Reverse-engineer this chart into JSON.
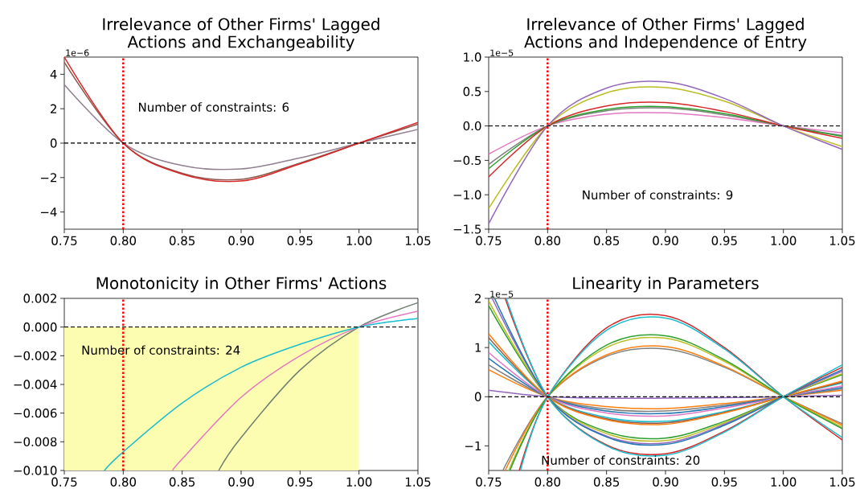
{
  "chart_data": [
    {
      "type": "line",
      "title": "Irrelevance of Other Firms' Lagged Actions and Exchangeability",
      "annotations": [
        "1e−6",
        "Number of constraints: 6"
      ],
      "x": [
        0.75,
        0.8,
        0.85,
        0.9,
        0.95,
        1.0,
        1.05
      ],
      "xlim": [
        0.75,
        1.05
      ],
      "ylim": [
        -5,
        5
      ],
      "xticks": [
        0.75,
        {
          "value": 0.8,
          "label": "0.80"
        },
        0.85,
        {
          "value": 0.9,
          "label": "0.90"
        },
        0.95,
        {
          "value": 1.0,
          "label": "1.00"
        },
        1.05
      ],
      "yticks": [
        {
          "value": -4,
          "label": "−4"
        },
        {
          "value": -2,
          "label": "−2"
        },
        0,
        2,
        4
      ],
      "ref_lines": [
        {
          "axis": "x",
          "value": 0.8,
          "color": "#ff0000",
          "line_style": "dotted"
        },
        {
          "axis": "y",
          "value": 0,
          "color": "#000000",
          "line_style": "dashed"
        }
      ],
      "series": [
        {
          "color": "#8f7f8f",
          "values": [
            3.4,
            0,
            -1.3,
            -1.5,
            -0.85,
            0,
            0.8
          ]
        },
        {
          "color": "#8c564b",
          "values": [
            4.7,
            0,
            -1.75,
            -2.1,
            -1.15,
            0,
            1.1
          ]
        },
        {
          "color": "#d62728",
          "values": [
            5.0,
            0,
            -1.8,
            -2.2,
            -1.2,
            0,
            1.2
          ]
        }
      ]
    },
    {
      "type": "line",
      "title": "Irrelevance of Other Firms' Lagged Actions and Independence of Entry",
      "annotations": [
        "1e−5",
        "Number of constraints: 9"
      ],
      "x": [
        0.75,
        0.8,
        0.85,
        0.9,
        0.95,
        1.0,
        1.05
      ],
      "xlim": [
        0.75,
        1.05
      ],
      "ylim": [
        -1.5,
        1.0
      ],
      "xticks": [
        0.75,
        {
          "value": 0.8,
          "label": "0.80"
        },
        0.85,
        {
          "value": 0.9,
          "label": "0.90"
        },
        0.95,
        {
          "value": 1.0,
          "label": "1.00"
        },
        1.05
      ],
      "yticks": [
        {
          "value": -1.5,
          "label": "−1.5"
        },
        {
          "value": -1.0,
          "label": "−1.0"
        },
        {
          "value": -0.5,
          "label": "−0.5"
        },
        {
          "value": 0,
          "label": "0.0"
        },
        0.5,
        {
          "value": 1.0,
          "label": "1.0"
        }
      ],
      "ref_lines": [
        {
          "axis": "x",
          "value": 0.8,
          "color": "#ff0000",
          "line_style": "dotted"
        },
        {
          "axis": "y",
          "value": 0,
          "color": "#000000",
          "line_style": "dashed"
        }
      ],
      "series": [
        {
          "color": "#e377c2",
          "values": [
            -0.41,
            0,
            0.17,
            0.19,
            0.12,
            0,
            -0.1
          ]
        },
        {
          "color": "#7f7f7f",
          "values": [
            -0.56,
            0,
            0.22,
            0.26,
            0.16,
            0,
            -0.14
          ]
        },
        {
          "color": "#2ca02c",
          "values": [
            -0.62,
            0,
            0.24,
            0.28,
            0.18,
            0,
            -0.15
          ]
        },
        {
          "color": "#d62728",
          "values": [
            -0.74,
            0,
            0.29,
            0.34,
            0.21,
            0,
            -0.18
          ]
        },
        {
          "color": "#bcbd22",
          "values": [
            -1.2,
            0,
            0.48,
            0.56,
            0.36,
            0,
            -0.3
          ]
        },
        {
          "color": "#9467bd",
          "values": [
            -1.42,
            0,
            0.55,
            0.64,
            0.4,
            0,
            -0.34
          ]
        }
      ]
    },
    {
      "type": "line",
      "title": "Monotonicity in Other Firms' Actions",
      "annotations": [
        "Number of constraints: 24"
      ],
      "xlim": [
        0.75,
        1.05
      ],
      "ylim": [
        -0.01,
        0.002
      ],
      "xticks": [
        0.75,
        {
          "value": 0.8,
          "label": "0.80"
        },
        0.85,
        {
          "value": 0.9,
          "label": "0.90"
        },
        0.95,
        {
          "value": 1.0,
          "label": "1.00"
        },
        1.05
      ],
      "yticks": [
        {
          "value": -0.01,
          "label": "−0.010"
        },
        {
          "value": -0.008,
          "label": "−0.008"
        },
        {
          "value": -0.006,
          "label": "−0.006"
        },
        {
          "value": -0.004,
          "label": "−0.004"
        },
        {
          "value": -0.002,
          "label": "−0.002"
        },
        {
          "value": 0,
          "label": "0.000"
        },
        {
          "value": 0.002,
          "label": "0.002"
        }
      ],
      "ref_lines": [
        {
          "axis": "x",
          "value": 0.8,
          "color": "#ff0000",
          "line_style": "dotted"
        },
        {
          "axis": "y",
          "value": 0,
          "color": "#000000",
          "line_style": "dashed"
        }
      ],
      "series": [
        {
          "type": "area",
          "color": "#fdfdb2",
          "x": [
            0.75,
            1.0
          ],
          "values": [
            -0.01,
            -0.01
          ]
        },
        {
          "color": "#6f7f6f",
          "x": [
            0.881,
            0.9,
            0.95,
            1.0,
            1.05
          ],
          "values": [
            -0.01,
            -0.0077,
            -0.003,
            0,
            0.0017
          ]
        },
        {
          "color": "#e377c2",
          "x": [
            0.842,
            0.85,
            0.9,
            0.95,
            1.0,
            1.05
          ],
          "values": [
            -0.01,
            -0.0092,
            -0.0049,
            -0.002,
            0,
            0.0011
          ]
        },
        {
          "color": "#17becf",
          "x": [
            0.784,
            0.8,
            0.85,
            0.9,
            0.95,
            1.0,
            1.05
          ],
          "values": [
            -0.01,
            -0.0087,
            -0.0053,
            -0.0028,
            -0.0012,
            0,
            0.0006
          ]
        }
      ]
    },
    {
      "type": "line",
      "title": "Linearity in Parameters",
      "annotations": [
        "1e−5",
        "Number of constraints: 20"
      ],
      "x": [
        0.75,
        0.8,
        0.85,
        0.9,
        0.95,
        1.0,
        1.05
      ],
      "xlim": [
        0.75,
        1.05
      ],
      "ylim": [
        -1.5,
        2
      ],
      "xticks": [
        0.75,
        {
          "value": 0.8,
          "label": "0.80"
        },
        0.85,
        {
          "value": 0.9,
          "label": "0.90"
        },
        0.95,
        {
          "value": 1.0,
          "label": "1.00"
        },
        1.05
      ],
      "yticks": [
        {
          "value": -1,
          "label": "−1"
        },
        0,
        1,
        2
      ],
      "ref_lines": [
        {
          "axis": "x",
          "value": 0.8,
          "color": "#ff0000",
          "line_style": "dotted"
        },
        {
          "axis": "y",
          "value": 0,
          "color": "#000000",
          "line_style": "dashed"
        }
      ],
      "series": [
        {
          "color": "#9467bd",
          "values": [
            0.13,
            0,
            -0.03,
            -0.03,
            -0.02,
            0,
            0.03
          ]
        },
        {
          "color": "#ff7f0e",
          "values": [
            0.55,
            0,
            -0.2,
            -0.24,
            -0.14,
            0,
            0.13
          ]
        },
        {
          "color": "#7f7f7f",
          "values": [
            0.65,
            0,
            -0.25,
            -0.29,
            -0.17,
            0,
            0.16
          ]
        },
        {
          "color": "#1f77b4",
          "values": [
            0.78,
            0,
            -0.29,
            -0.34,
            -0.2,
            0,
            0.19
          ]
        },
        {
          "color": "#e377c2",
          "values": [
            0.9,
            0,
            -0.33,
            -0.39,
            -0.23,
            0,
            0.22
          ]
        },
        {
          "color": "#17becf",
          "values": [
            1.12,
            0,
            -0.42,
            -0.5,
            -0.3,
            0,
            0.28
          ]
        },
        {
          "color": "#8c564b",
          "values": [
            1.2,
            0,
            -0.45,
            -0.53,
            -0.32,
            0,
            0.3
          ]
        },
        {
          "color": "#ff7f0e",
          "values": [
            1.28,
            0,
            -0.47,
            -0.56,
            -0.33,
            0,
            0.32
          ]
        },
        {
          "color": "#2ca02c",
          "values": [
            1.85,
            0,
            -0.71,
            -0.84,
            -0.5,
            0,
            0.45
          ]
        },
        {
          "color": "#bcbd22",
          "values": [
            1.95,
            0,
            -0.75,
            -0.89,
            -0.53,
            0,
            0.47
          ]
        },
        {
          "color": "#9467bd",
          "x": [
            0.753,
            0.8,
            0.85,
            0.9,
            0.95,
            1.0,
            1.05
          ],
          "values": [
            2.0,
            0,
            -0.8,
            -0.94,
            -0.56,
            0,
            0.52
          ]
        },
        {
          "color": "#1f77b4",
          "x": [
            0.755,
            0.8,
            0.85,
            0.9,
            0.95,
            1.0,
            1.05
          ],
          "values": [
            2.0,
            0,
            -0.82,
            -0.97,
            -0.58,
            0,
            0.55
          ]
        },
        {
          "color": "#d62728",
          "x": [
            0.764,
            0.8,
            0.85,
            0.9,
            0.95,
            1.0,
            1.05
          ],
          "values": [
            2.0,
            0,
            -0.98,
            -1.16,
            -0.7,
            0,
            0.6
          ]
        },
        {
          "color": "#17becf",
          "x": [
            0.765,
            0.8,
            0.85,
            0.9,
            0.95,
            1.0,
            1.05
          ],
          "values": [
            2.0,
            0,
            -1.0,
            -1.19,
            -0.72,
            0,
            0.65
          ]
        },
        {
          "color": "#7f7f7f",
          "x": [
            0.762,
            0.8,
            0.85,
            0.9,
            0.95,
            1.0,
            1.05
          ],
          "values": [
            -1.5,
            0,
            0.82,
            0.97,
            0.6,
            0,
            -0.55
          ]
        },
        {
          "color": "#ff7f0e",
          "x": [
            0.764,
            0.8,
            0.85,
            0.9,
            0.95,
            1.0,
            1.05
          ],
          "values": [
            -1.5,
            0,
            0.85,
            1.02,
            0.62,
            0,
            -0.58
          ]
        },
        {
          "color": "#bcbd22",
          "x": [
            0.767,
            0.8,
            0.85,
            0.9,
            0.95,
            1.0,
            1.05
          ],
          "values": [
            -1.5,
            0,
            1.0,
            1.19,
            0.72,
            0,
            -0.62
          ]
        },
        {
          "color": "#2ca02c",
          "x": [
            0.768,
            0.8,
            0.85,
            0.9,
            0.95,
            1.0,
            1.05
          ],
          "values": [
            -1.5,
            0,
            1.05,
            1.24,
            0.75,
            0,
            -0.65
          ]
        },
        {
          "color": "#d62728",
          "x": [
            0.776,
            0.8,
            0.85,
            0.9,
            0.95,
            1.0,
            1.05
          ],
          "values": [
            -1.5,
            0,
            1.4,
            1.65,
            1.0,
            0,
            -0.88
          ]
        },
        {
          "color": "#17becf",
          "x": [
            0.777,
            0.8,
            0.85,
            0.9,
            0.95,
            1.0,
            1.05
          ],
          "values": [
            -1.5,
            0,
            1.35,
            1.6,
            0.97,
            0,
            -0.83
          ]
        }
      ]
    }
  ]
}
